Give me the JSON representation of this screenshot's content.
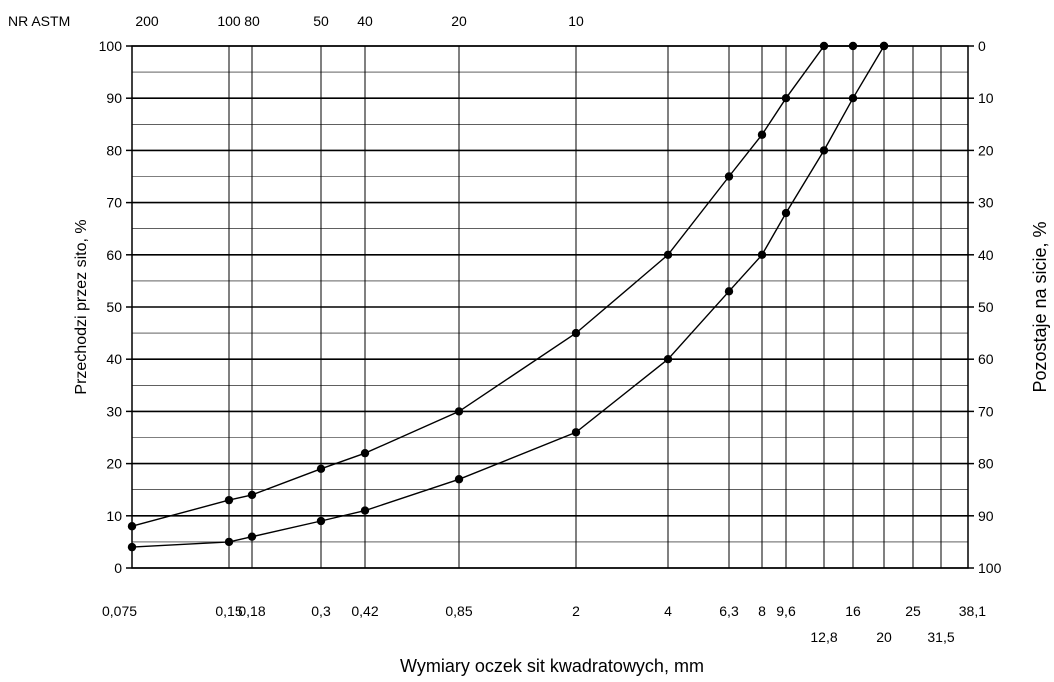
{
  "chart_data": {
    "type": "line",
    "title": "",
    "xlabel": "Wymiary oczek sit kwadratowych, mm",
    "ylabel": "Przechodzi przez sito, %",
    "y2label": "Pozostaje na sicie, %",
    "x_scale": "log",
    "xlim": [
      0.075,
      38.1
    ],
    "ylim": [
      0,
      100
    ],
    "grid": true,
    "yticks": [
      "0",
      "10",
      "20",
      "30",
      "40",
      "50",
      "60",
      "70",
      "80",
      "90",
      "100"
    ],
    "y2ticks": [
      "100",
      "90",
      "80",
      "70",
      "60",
      "50",
      "40",
      "30",
      "20",
      "10",
      "0"
    ],
    "sieves_row1": [
      {
        "x": 0.075,
        "label": "0,075"
      },
      {
        "x": 0.15,
        "label": "0,15"
      },
      {
        "x": 0.18,
        "label": "0,18"
      },
      {
        "x": 0.3,
        "label": "0,3"
      },
      {
        "x": 0.42,
        "label": "0,42"
      },
      {
        "x": 0.85,
        "label": "0,85"
      },
      {
        "x": 2,
        "label": "2"
      },
      {
        "x": 4,
        "label": "4"
      },
      {
        "x": 6.3,
        "label": "6,3"
      },
      {
        "x": 8,
        "label": "8"
      },
      {
        "x": 9.6,
        "label": "9,6"
      },
      {
        "x": 16,
        "label": "16"
      },
      {
        "x": 25,
        "label": "25"
      },
      {
        "x": 38.1,
        "label": "38,1"
      }
    ],
    "sieves_row2": [
      {
        "x": 12.8,
        "label": "12,8"
      },
      {
        "x": 20,
        "label": "20"
      },
      {
        "x": 31.5,
        "label": "31,5"
      }
    ],
    "astm_label": "NR ASTM",
    "astm": [
      {
        "x": 0.075,
        "label": "200"
      },
      {
        "x": 0.15,
        "label": "100"
      },
      {
        "x": 0.18,
        "label": "80"
      },
      {
        "x": 0.3,
        "label": "50"
      },
      {
        "x": 0.42,
        "label": "40"
      },
      {
        "x": 0.85,
        "label": "20"
      },
      {
        "x": 2,
        "label": "10"
      }
    ],
    "series": [
      {
        "x": [
          0.075,
          0.15,
          0.18,
          0.3,
          0.42,
          0.85,
          2,
          4,
          6.3,
          8,
          9.6,
          12.8,
          16,
          20
        ],
        "values": [
          8,
          13,
          14,
          19,
          22,
          30,
          45,
          60,
          75,
          83,
          90,
          100,
          100,
          100
        ]
      },
      {
        "x": [
          0.075,
          0.15,
          0.18,
          0.3,
          0.42,
          0.85,
          2,
          4,
          6.3,
          8,
          9.6,
          12.8,
          16,
          20
        ],
        "values": [
          4,
          5,
          6,
          9,
          11,
          17,
          26,
          40,
          53,
          60,
          68,
          80,
          90,
          100
        ]
      }
    ]
  }
}
